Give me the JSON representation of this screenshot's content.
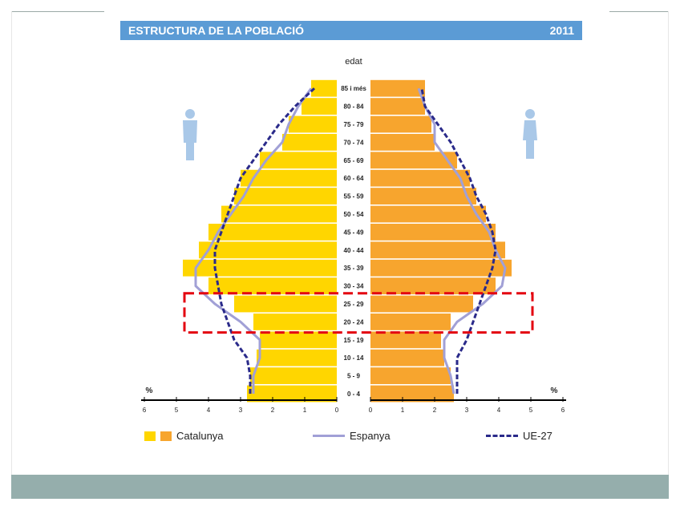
{
  "header": {
    "title": "ESTRUCTURA DE LA POBLACIÓ",
    "year": "2011"
  },
  "colors": {
    "header_bg": "#5b9bd5",
    "bottom_band": "#95aeac",
    "catalunya_men": "#ffd600",
    "catalunya_women": "#f7a52e",
    "espanya": "#a1a0d6",
    "ue27": "#2a2a8a",
    "highlight": "#e3000f",
    "silhouette": "#a9c8e8"
  },
  "chart_data": {
    "type": "population-pyramid",
    "title": "ESTRUCTURA DE LA POBLACIÓ",
    "year": "2011",
    "ylabel": "edat",
    "xlabel_left": "%",
    "xlabel_right": "%",
    "xlim": [
      0,
      6
    ],
    "x_ticks_left": [
      "6",
      "5",
      "4",
      "3",
      "2",
      "1",
      "0"
    ],
    "x_ticks_right": [
      "0",
      "1",
      "2",
      "3",
      "4",
      "5",
      "6"
    ],
    "categories": [
      "0 - 4",
      "5 - 9",
      "10 - 14",
      "15 - 19",
      "20 - 24",
      "25 - 29",
      "30 - 34",
      "35 - 39",
      "40 - 44",
      "45 - 49",
      "50 - 54",
      "55 - 59",
      "60 - 64",
      "65 - 69",
      "70 - 74",
      "75 - 79",
      "80 - 84",
      "85 i més"
    ],
    "series": [
      {
        "name": "Catalunya",
        "side": "left",
        "type": "bar",
        "values": [
          2.8,
          2.7,
          2.5,
          2.4,
          2.6,
          3.2,
          4.0,
          4.8,
          4.3,
          4.0,
          3.6,
          3.2,
          3.0,
          2.4,
          1.7,
          1.5,
          1.1,
          0.8
        ]
      },
      {
        "name": "Catalunya",
        "side": "right",
        "type": "bar",
        "values": [
          2.6,
          2.5,
          2.3,
          2.2,
          2.5,
          3.2,
          3.9,
          4.4,
          4.2,
          3.9,
          3.6,
          3.3,
          3.1,
          2.7,
          2.0,
          1.9,
          1.7,
          1.7
        ]
      },
      {
        "name": "Espanya",
        "side": "left",
        "type": "line",
        "values": [
          2.6,
          2.6,
          2.4,
          2.4,
          3.0,
          3.8,
          4.4,
          4.4,
          4.0,
          3.7,
          3.3,
          2.9,
          2.6,
          2.2,
          1.7,
          1.5,
          1.2,
          0.8
        ]
      },
      {
        "name": "Espanya",
        "side": "right",
        "type": "line",
        "values": [
          2.6,
          2.5,
          2.3,
          2.3,
          2.7,
          3.5,
          4.1,
          4.2,
          3.9,
          3.7,
          3.3,
          3.0,
          2.8,
          2.4,
          2.0,
          2.0,
          1.7,
          1.5
        ]
      },
      {
        "name": "UE-27",
        "side": "left",
        "type": "line",
        "values": [
          2.7,
          2.7,
          2.8,
          3.2,
          3.4,
          3.6,
          3.7,
          3.8,
          3.8,
          3.6,
          3.4,
          3.2,
          3.0,
          2.6,
          2.2,
          1.8,
          1.3,
          0.7
        ]
      },
      {
        "name": "UE-27",
        "side": "right",
        "type": "line",
        "values": [
          2.7,
          2.7,
          2.7,
          3.0,
          3.2,
          3.4,
          3.6,
          3.8,
          3.9,
          3.8,
          3.6,
          3.3,
          3.1,
          2.8,
          2.5,
          2.1,
          1.7,
          1.6
        ]
      }
    ],
    "highlight_categories": [
      "20 - 24",
      "25 - 29"
    ],
    "legend": [
      {
        "label": "Catalunya",
        "kind": "swatches"
      },
      {
        "label": "Espanya",
        "kind": "solid-line"
      },
      {
        "label": "UE-27",
        "kind": "dashed-line"
      }
    ],
    "legend_position": "bottom"
  }
}
